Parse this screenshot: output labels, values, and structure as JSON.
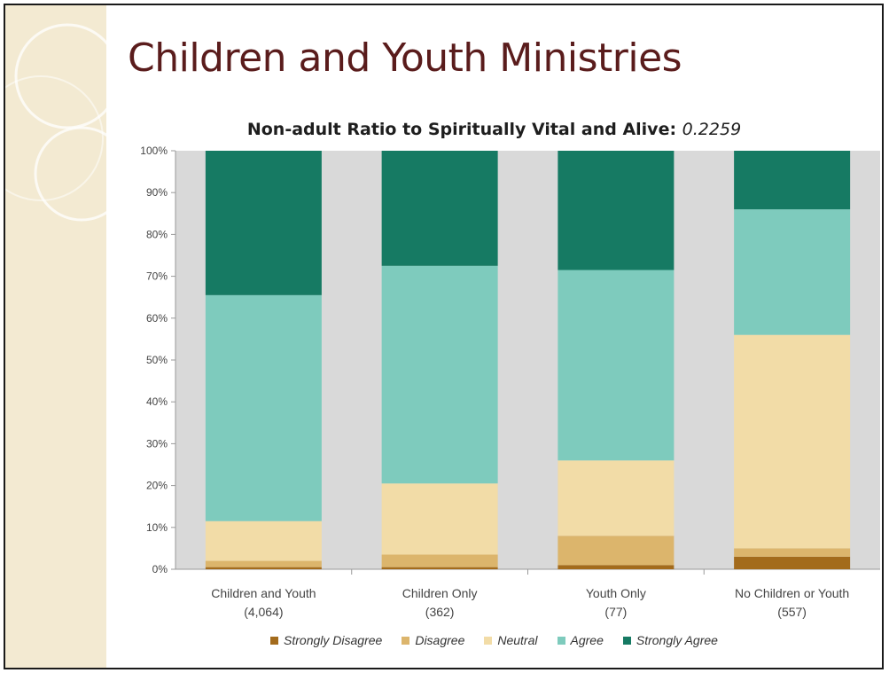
{
  "slide": {
    "title": "Children and Youth Ministries"
  },
  "chart_data": {
    "type": "bar",
    "stacked": true,
    "title": "Non-adult Ratio to Spiritually Vital and Alive:",
    "title_value": "0.2259",
    "categories": [
      [
        "Children and Youth",
        "(4,064)"
      ],
      [
        "Children Only",
        "(362)"
      ],
      [
        "Youth Only",
        "(77)"
      ],
      [
        "No Children or Youth",
        "(557)"
      ]
    ],
    "series": [
      {
        "name": "Strongly Disagree",
        "color": "#a36b1c",
        "values": [
          0.5,
          0.5,
          1,
          3
        ]
      },
      {
        "name": "Disagree",
        "color": "#dcb56c",
        "values": [
          1.5,
          3,
          7,
          2
        ]
      },
      {
        "name": "Neutral",
        "color": "#f2dca7",
        "values": [
          9.5,
          17,
          18,
          51
        ]
      },
      {
        "name": "Agree",
        "color": "#7ecbbd",
        "values": [
          54,
          52,
          45.5,
          30
        ]
      },
      {
        "name": "Strongly Agree",
        "color": "#167a63",
        "values": [
          34.5,
          27.5,
          28.5,
          14
        ]
      }
    ],
    "ylim": [
      0,
      100
    ],
    "yticks": [
      "0%",
      "10%",
      "20%",
      "30%",
      "40%",
      "50%",
      "60%",
      "70%",
      "80%",
      "90%",
      "100%"
    ],
    "grid": false,
    "legend_position": "bottom",
    "plot_background": "#d9d9d9"
  }
}
